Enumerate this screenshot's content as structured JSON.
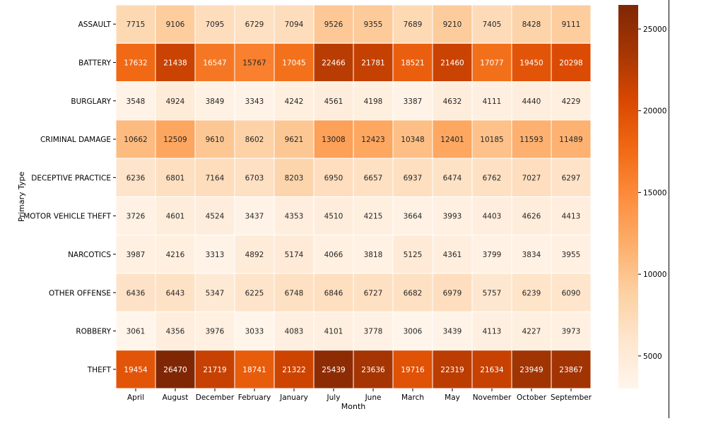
{
  "chart_data": {
    "type": "heatmap",
    "title": "",
    "xlabel": "Month",
    "ylabel": "Primary Type",
    "x": [
      "April",
      "August",
      "December",
      "February",
      "January",
      "July",
      "June",
      "March",
      "May",
      "November",
      "October",
      "September"
    ],
    "y": [
      "ASSAULT",
      "BATTERY",
      "BURGLARY",
      "CRIMINAL DAMAGE",
      "DECEPTIVE PRACTICE",
      "MOTOR VEHICLE THEFT",
      "NARCOTICS",
      "OTHER OFFENSE",
      "ROBBERY",
      "THEFT"
    ],
    "values": [
      [
        7715,
        9106,
        7095,
        6729,
        7094,
        9526,
        9355,
        7689,
        9210,
        7405,
        8428,
        9111
      ],
      [
        17632,
        21438,
        16547,
        15767,
        17045,
        22466,
        21781,
        18521,
        21460,
        17077,
        19450,
        20298
      ],
      [
        3548,
        4924,
        3849,
        3343,
        4242,
        4561,
        4198,
        3387,
        4632,
        4111,
        4440,
        4229
      ],
      [
        10662,
        12509,
        9610,
        8602,
        9621,
        13008,
        12423,
        10348,
        12401,
        10185,
        11593,
        11489
      ],
      [
        6236,
        6801,
        7164,
        6703,
        8203,
        6950,
        6657,
        6937,
        6474,
        6762,
        7027,
        6297
      ],
      [
        3726,
        4601,
        4524,
        3437,
        4353,
        4510,
        4215,
        3664,
        3993,
        4403,
        4626,
        4413
      ],
      [
        3987,
        4216,
        3313,
        4892,
        5174,
        4066,
        3818,
        5125,
        4361,
        3799,
        3834,
        3955
      ],
      [
        6436,
        6443,
        5347,
        6225,
        6748,
        6846,
        6727,
        6682,
        6979,
        5757,
        6239,
        6090
      ],
      [
        3061,
        4356,
        3976,
        3033,
        4083,
        4101,
        3778,
        3006,
        3439,
        4113,
        4227,
        3973
      ],
      [
        19454,
        26470,
        21719,
        18741,
        21322,
        25439,
        23636,
        19716,
        22319,
        21634,
        23949,
        23867
      ]
    ],
    "colorbar": {
      "colormap": "Oranges",
      "range": [
        3006,
        26470
      ],
      "ticks": [
        5000,
        10000,
        15000,
        20000,
        25000
      ],
      "tick_labels": [
        "5000",
        "10000",
        "15000",
        "20000",
        "25000"
      ]
    },
    "annotations": "cell values shown in each cell",
    "grid": false
  }
}
